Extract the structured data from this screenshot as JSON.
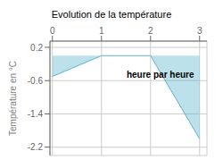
{
  "chart_data": {
    "type": "area",
    "title": "Evolution de la température",
    "ylabel": "Température en °C",
    "x": [
      0,
      1,
      2,
      3
    ],
    "values": [
      -0.5,
      0.0,
      0.0,
      -2.0
    ],
    "color": "#5ab4cc",
    "xlim": [
      -0.05,
      3.15
    ],
    "ylim": [
      -2.4,
      0.35
    ],
    "xticks": [
      0,
      1,
      2,
      3
    ],
    "yticks": [
      0.2,
      -0.6,
      -1.4,
      -2.2
    ],
    "grid": true,
    "annotations": [
      {
        "text": "heure par heure",
        "x": 2.2,
        "y": -0.45
      }
    ]
  }
}
